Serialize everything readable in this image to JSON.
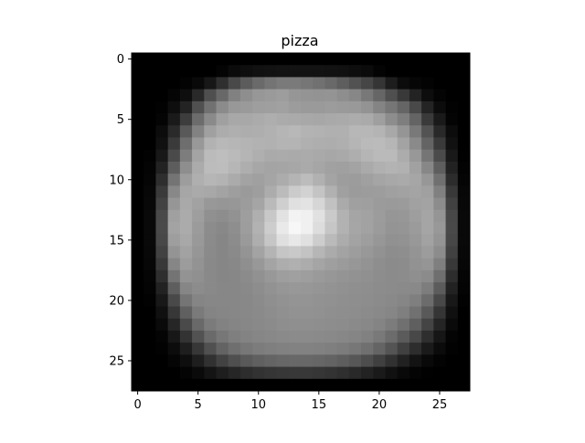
{
  "chart_data": {
    "type": "heatmap",
    "title": "pizza",
    "colormap": "gray",
    "value_range": [
      0,
      255
    ],
    "xlim": [
      -0.5,
      27.5
    ],
    "ylim": [
      27.5,
      -0.5
    ],
    "rows": 28,
    "cols": 28,
    "x_ticks": [
      0,
      5,
      10,
      15,
      20,
      25
    ],
    "y_ticks": [
      0,
      5,
      10,
      15,
      20,
      25
    ],
    "x_tick_labels": [
      "0",
      "5",
      "10",
      "15",
      "20",
      "25"
    ],
    "y_tick_labels": [
      "0",
      "5",
      "10",
      "15",
      "20",
      "25"
    ],
    "values": [
      [
        0,
        0,
        0,
        0,
        0,
        0,
        0,
        0,
        0,
        0,
        0,
        0,
        0,
        0,
        0,
        0,
        0,
        0,
        0,
        0,
        0,
        0,
        0,
        0,
        0,
        0,
        0,
        0
      ],
      [
        0,
        0,
        0,
        0,
        0,
        0,
        0,
        4,
        11,
        14,
        17,
        18,
        19,
        19,
        19,
        19,
        18,
        17,
        14,
        11,
        4,
        0,
        0,
        0,
        0,
        0,
        0,
        0
      ],
      [
        0,
        0,
        0,
        0,
        3,
        9,
        23,
        47,
        73,
        92,
        106,
        116,
        122,
        122,
        118,
        113,
        105,
        94,
        82,
        70,
        53,
        29,
        12,
        6,
        3,
        0,
        0,
        0
      ],
      [
        0,
        0,
        0,
        5,
        14,
        41,
        79,
        104,
        129,
        142,
        151,
        154,
        157,
        150,
        148,
        147,
        148,
        142,
        135,
        120,
        102,
        79,
        57,
        35,
        13,
        4,
        0,
        0
      ],
      [
        0,
        0,
        2,
        14,
        35,
        80,
        113,
        139,
        152,
        154,
        158,
        159,
        161,
        156,
        154,
        154,
        156,
        154,
        153,
        147,
        132,
        118,
        101,
        73,
        36,
        12,
        2,
        0
      ],
      [
        0,
        0,
        4,
        26,
        61,
        108,
        138,
        160,
        168,
        168,
        171,
        174,
        171,
        170,
        168,
        167,
        169,
        170,
        172,
        170,
        159,
        141,
        126,
        100,
        58,
        26,
        4,
        0
      ],
      [
        0,
        0,
        12,
        42,
        89,
        130,
        160,
        172,
        175,
        173,
        174,
        177,
        181,
        184,
        179,
        178,
        176,
        176,
        183,
        183,
        180,
        168,
        149,
        121,
        83,
        41,
        12,
        0
      ],
      [
        0,
        0,
        16,
        58,
        110,
        152,
        178,
        184,
        182,
        180,
        178,
        177,
        180,
        180,
        176,
        174,
        173,
        175,
        181,
        186,
        187,
        182,
        163,
        138,
        100,
        58,
        17,
        0
      ],
      [
        0,
        2,
        24,
        74,
        125,
        164,
        187,
        190,
        186,
        181,
        175,
        170,
        171,
        170,
        171,
        169,
        167,
        169,
        174,
        181,
        186,
        186,
        172,
        152,
        117,
        75,
        25,
        1
      ],
      [
        0,
        4,
        34,
        93,
        142,
        171,
        188,
        189,
        182,
        174,
        167,
        164,
        165,
        167,
        170,
        166,
        161,
        160,
        163,
        170,
        176,
        179,
        177,
        161,
        135,
        94,
        34,
        3
      ],
      [
        0,
        5,
        46,
        116,
        157,
        175,
        182,
        179,
        171,
        163,
        160,
        165,
        172,
        180,
        188,
        177,
        164,
        157,
        156,
        160,
        165,
        168,
        170,
        166,
        151,
        112,
        44,
        5
      ],
      [
        0,
        7,
        58,
        136,
        166,
        170,
        168,
        163,
        158,
        154,
        158,
        172,
        187,
        203,
        210,
        196,
        177,
        160,
        155,
        156,
        157,
        160,
        162,
        164,
        160,
        128,
        56,
        7
      ],
      [
        0,
        8,
        66,
        150,
        169,
        162,
        152,
        150,
        151,
        156,
        165,
        186,
        207,
        224,
        227,
        214,
        193,
        170,
        160,
        159,
        155,
        154,
        155,
        161,
        163,
        140,
        65,
        8
      ],
      [
        0,
        9,
        73,
        160,
        171,
        158,
        144,
        141,
        146,
        158,
        175,
        200,
        226,
        243,
        240,
        225,
        202,
        178,
        165,
        162,
        156,
        150,
        151,
        158,
        165,
        149,
        72,
        9
      ],
      [
        0,
        9,
        74,
        163,
        171,
        155,
        140,
        136,
        142,
        157,
        178,
        205,
        233,
        247,
        240,
        221,
        198,
        178,
        166,
        162,
        155,
        148,
        149,
        155,
        165,
        152,
        73,
        9
      ],
      [
        0,
        9,
        72,
        158,
        168,
        153,
        139,
        134,
        140,
        154,
        174,
        198,
        223,
        232,
        224,
        205,
        186,
        172,
        163,
        158,
        151,
        145,
        146,
        152,
        162,
        148,
        71,
        9
      ],
      [
        0,
        8,
        66,
        148,
        162,
        150,
        138,
        134,
        138,
        148,
        163,
        180,
        197,
        201,
        195,
        182,
        171,
        163,
        157,
        152,
        146,
        141,
        142,
        148,
        156,
        140,
        65,
        8
      ],
      [
        0,
        7,
        57,
        134,
        156,
        147,
        137,
        134,
        136,
        143,
        152,
        164,
        173,
        176,
        172,
        165,
        159,
        155,
        151,
        147,
        142,
        139,
        140,
        146,
        149,
        127,
        56,
        7
      ],
      [
        0,
        5,
        46,
        116,
        147,
        144,
        137,
        134,
        135,
        139,
        145,
        152,
        158,
        160,
        158,
        154,
        151,
        148,
        146,
        144,
        141,
        139,
        140,
        143,
        139,
        111,
        45,
        5
      ],
      [
        0,
        4,
        34,
        94,
        134,
        140,
        137,
        135,
        135,
        137,
        141,
        146,
        150,
        152,
        151,
        149,
        147,
        145,
        143,
        142,
        140,
        139,
        138,
        137,
        125,
        92,
        34,
        4
      ],
      [
        0,
        2,
        24,
        73,
        117,
        133,
        135,
        135,
        135,
        136,
        139,
        143,
        146,
        148,
        148,
        146,
        145,
        143,
        142,
        141,
        139,
        137,
        134,
        127,
        108,
        72,
        24,
        2
      ],
      [
        0,
        0,
        16,
        55,
        96,
        122,
        132,
        134,
        135,
        136,
        138,
        141,
        144,
        146,
        146,
        145,
        143,
        142,
        141,
        139,
        137,
        134,
        127,
        113,
        89,
        53,
        16,
        0
      ],
      [
        0,
        0,
        10,
        38,
        74,
        105,
        123,
        130,
        133,
        135,
        137,
        139,
        142,
        143,
        143,
        142,
        141,
        140,
        138,
        136,
        132,
        124,
        112,
        95,
        68,
        37,
        10,
        0
      ],
      [
        0,
        0,
        4,
        23,
        51,
        82,
        106,
        119,
        127,
        131,
        134,
        136,
        138,
        139,
        139,
        138,
        137,
        135,
        133,
        129,
        121,
        108,
        91,
        72,
        46,
        22,
        4,
        0
      ],
      [
        0,
        0,
        2,
        12,
        30,
        55,
        80,
        99,
        111,
        119,
        124,
        127,
        129,
        130,
        130,
        129,
        127,
        124,
        119,
        112,
        100,
        84,
        64,
        45,
        26,
        11,
        2,
        0
      ],
      [
        0,
        0,
        0,
        5,
        14,
        30,
        49,
        66,
        79,
        89,
        96,
        100,
        103,
        104,
        104,
        102,
        99,
        94,
        87,
        77,
        64,
        49,
        33,
        19,
        9,
        3,
        0,
        0
      ],
      [
        0,
        0,
        0,
        0,
        4,
        10,
        20,
        30,
        38,
        45,
        50,
        53,
        55,
        56,
        56,
        54,
        51,
        47,
        41,
        34,
        26,
        17,
        9,
        4,
        1,
        0,
        0,
        0
      ],
      [
        0,
        0,
        0,
        0,
        0,
        0,
        0,
        0,
        0,
        0,
        0,
        0,
        0,
        0,
        0,
        0,
        0,
        0,
        0,
        0,
        0,
        0,
        0,
        0,
        0,
        0,
        0,
        0
      ]
    ]
  }
}
